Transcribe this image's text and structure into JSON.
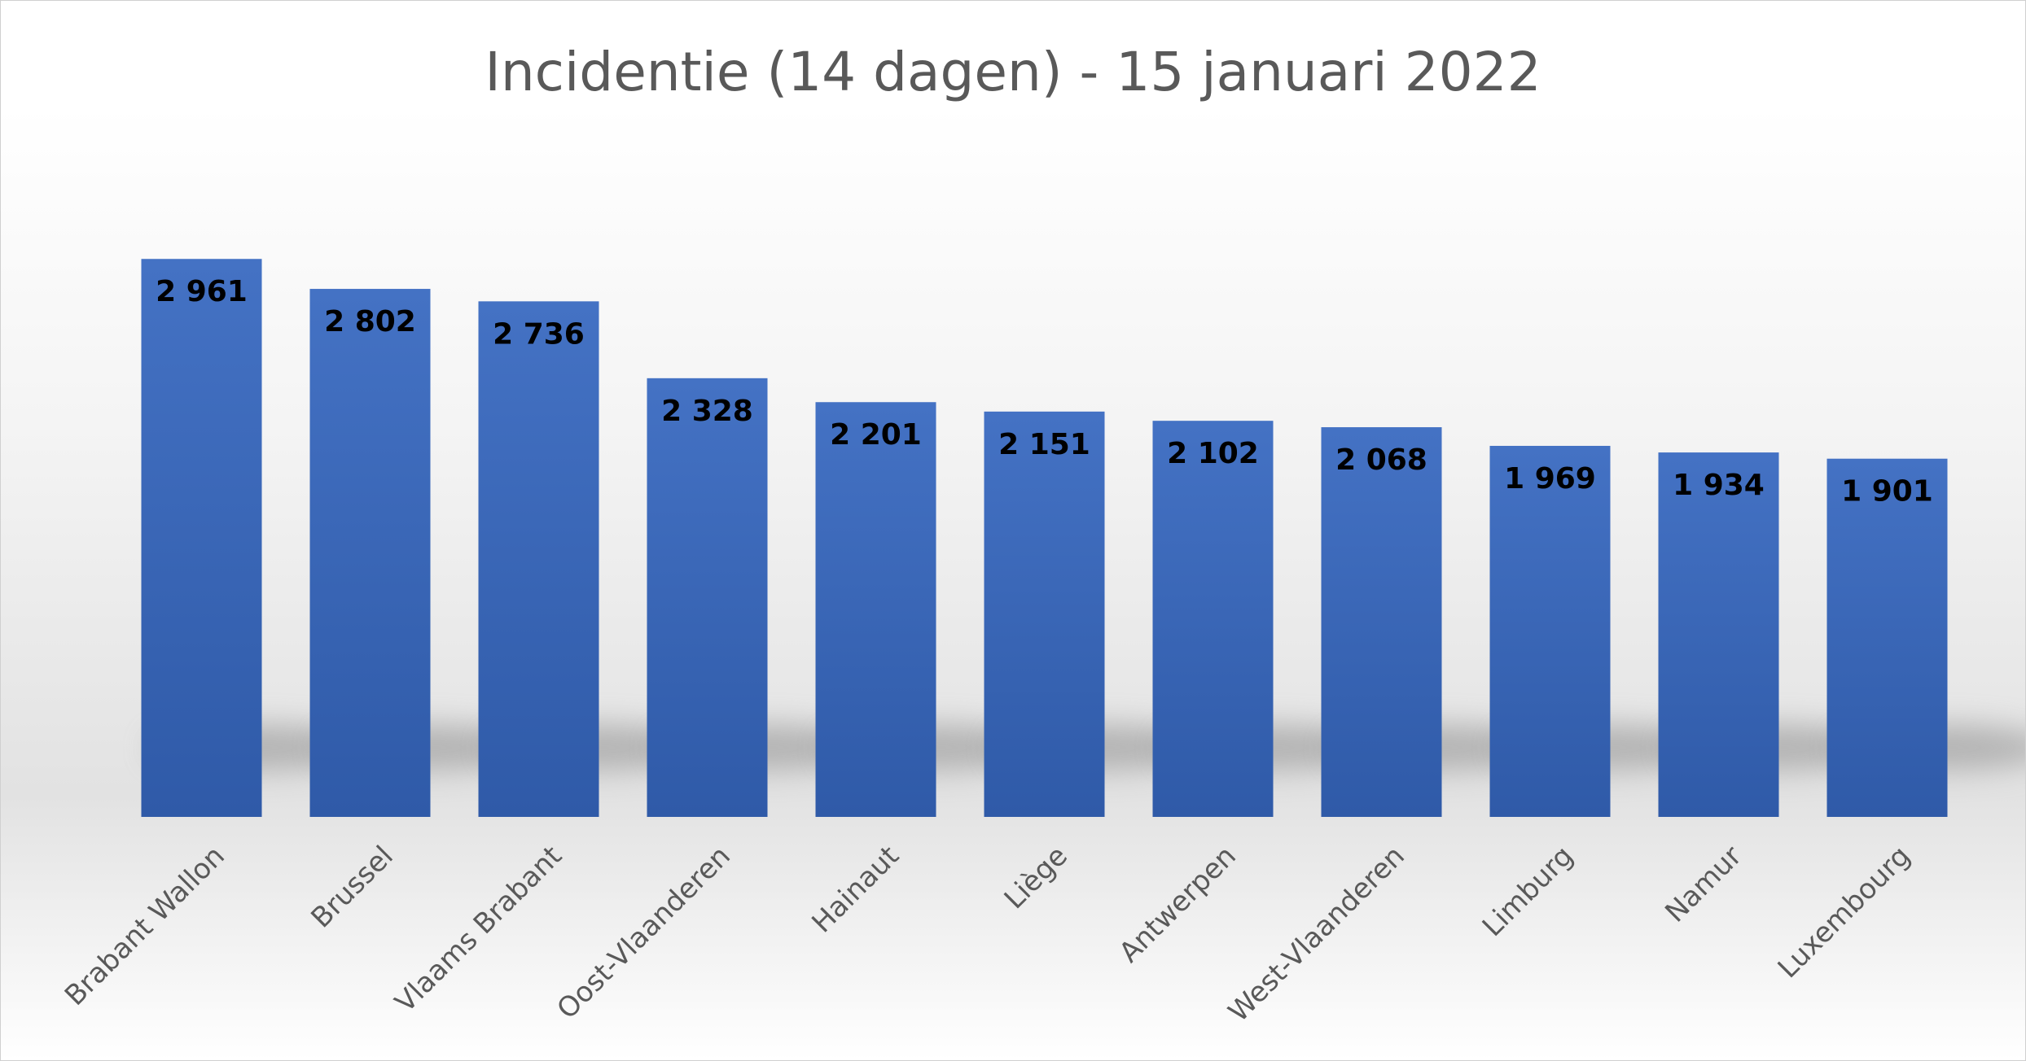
{
  "chart_data": {
    "type": "bar",
    "title": "Incidentie (14 dagen) - 15 januari 2022",
    "xlabel": "",
    "ylabel": "",
    "categories": [
      "Brabant Wallon",
      "Brussel",
      "Vlaams Brabant",
      "Oost-Vlaanderen",
      "Hainaut",
      "Liège",
      "Antwerpen",
      "West-Vlaanderen",
      "Limburg",
      "Namur",
      "Luxembourg"
    ],
    "values": [
      2961,
      2802,
      2736,
      2328,
      2201,
      2151,
      2102,
      2068,
      1969,
      1934,
      1901
    ],
    "value_labels": [
      "2 961",
      "2 802",
      "2 736",
      "2 328",
      "2 201",
      "2 151",
      "2 102",
      "2 068",
      "1 969",
      "1 934",
      "1 901"
    ],
    "ylim": [
      0,
      3400
    ],
    "grid": false,
    "legend": "none",
    "bar_color": "#4472c4",
    "bar_color_dark": "#2f5aa8"
  }
}
